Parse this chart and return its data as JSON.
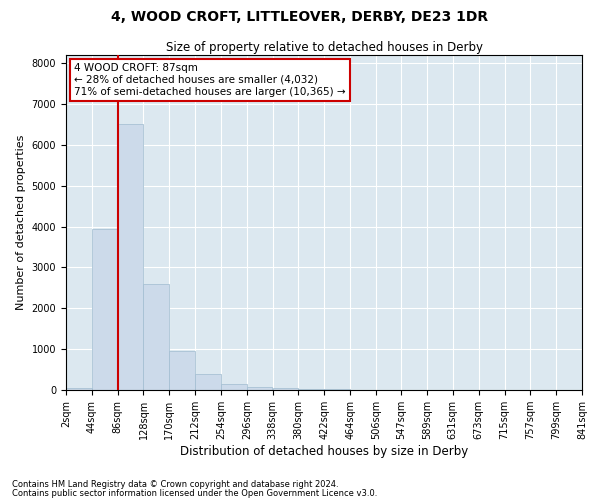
{
  "title1": "4, WOOD CROFT, LITTLEOVER, DERBY, DE23 1DR",
  "title2": "Size of property relative to detached houses in Derby",
  "xlabel": "Distribution of detached houses by size in Derby",
  "ylabel": "Number of detached properties",
  "footer1": "Contains HM Land Registry data © Crown copyright and database right 2024.",
  "footer2": "Contains public sector information licensed under the Open Government Licence v3.0.",
  "annotation_line1": "4 WOOD CROFT: 87sqm",
  "annotation_line2": "← 28% of detached houses are smaller (4,032)",
  "annotation_line3": "71% of semi-detached houses are larger (10,365) →",
  "property_size_sqm": 87,
  "bins": [
    2,
    44,
    86,
    128,
    170,
    212,
    254,
    296,
    338,
    380,
    422,
    464,
    506,
    547,
    589,
    631,
    673,
    715,
    757,
    799,
    841
  ],
  "bar_values": [
    50,
    3950,
    6500,
    2600,
    950,
    380,
    145,
    80,
    40,
    30,
    20,
    10,
    5,
    3,
    2,
    2,
    1,
    1,
    1,
    1
  ],
  "bar_color": "#ccdaea",
  "bar_edge_color": "#a0bcd0",
  "vline_color": "#cc0000",
  "vline_x": 87,
  "annotation_box_facecolor": "#ffffff",
  "annotation_box_edgecolor": "#cc0000",
  "ylim": [
    0,
    8200
  ],
  "yticks": [
    0,
    1000,
    2000,
    3000,
    4000,
    5000,
    6000,
    7000,
    8000
  ],
  "plot_bg_color": "#dce8f0",
  "grid_color": "#ffffff",
  "title1_fontsize": 10,
  "title2_fontsize": 8.5,
  "xlabel_fontsize": 8.5,
  "ylabel_fontsize": 8,
  "tick_fontsize": 7,
  "annotation_fontsize": 7.5,
  "footer_fontsize": 6
}
